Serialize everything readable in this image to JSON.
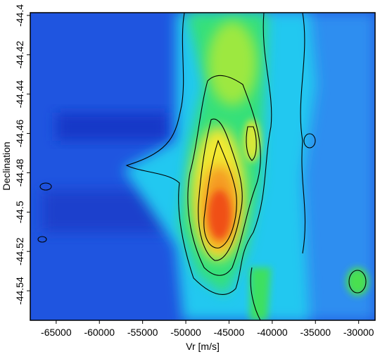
{
  "chart_data": {
    "type": "heatmap",
    "x_label": "Vr [m/s]",
    "y_label": "Declination",
    "xlim": [
      -68000,
      -28100
    ],
    "ylim": [
      -44.555,
      -44.3986
    ],
    "xticks": [
      -65000,
      -60000,
      -55000,
      -50000,
      -45000,
      -40000,
      -35000,
      -30000
    ],
    "yticks": [
      -44.4,
      -44.42,
      -44.44,
      -44.46,
      -44.48,
      -44.5,
      -44.52,
      -44.54
    ]
  }
}
